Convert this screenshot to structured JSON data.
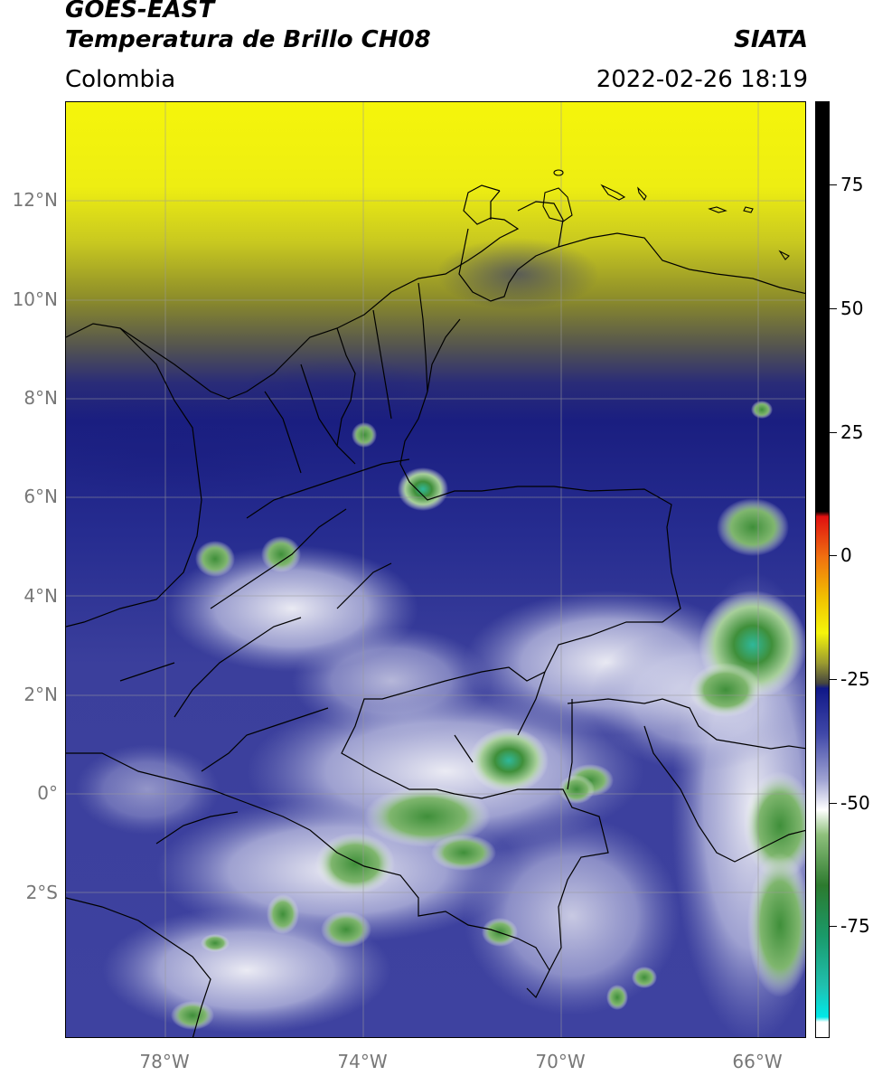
{
  "header": {
    "satellite": "GOES-EAST",
    "product": "Temperatura de Brillo CH08",
    "region": "Colombia",
    "agency": "SIATA",
    "timestamp": "2022-02-26 18:19"
  },
  "map": {
    "lat_ticks": [
      "12°N",
      "10°N",
      "8°N",
      "6°N",
      "4°N",
      "2°N",
      "0°",
      "2°S"
    ],
    "lon_ticks": [
      "78°W",
      "74°W",
      "70°W",
      "66°W"
    ],
    "colors": {
      "warm_yellow": "#f5f50a",
      "olive": "#8c8c2a",
      "gray": "#55554f",
      "navy": "#1a1e80",
      "blue": "#3b3f9c",
      "lavender": "#8a8ec6",
      "white": "#f4f4f8",
      "light_green": "#a7cf9a",
      "green": "#3f8f3a",
      "teal": "#2fb89a",
      "border": "#000000"
    }
  },
  "colorbar": {
    "labels": [
      "75",
      "50",
      "25",
      "0",
      "-25",
      "-50",
      "-75"
    ],
    "range": [
      -95,
      90
    ],
    "stops": [
      {
        "value": 90,
        "color": "#000000"
      },
      {
        "value": 9,
        "color": "#000000"
      },
      {
        "value": 8,
        "color": "#e01010"
      },
      {
        "value": 0,
        "color": "#f07010"
      },
      {
        "value": -8,
        "color": "#f0c000"
      },
      {
        "value": -15,
        "color": "#f5f50a"
      },
      {
        "value": -21,
        "color": "#9a9a30"
      },
      {
        "value": -25,
        "color": "#45453f"
      },
      {
        "value": -26,
        "color": "#101888"
      },
      {
        "value": -35,
        "color": "#4048a8"
      },
      {
        "value": -44,
        "color": "#9ea2d2"
      },
      {
        "value": -50,
        "color": "#ffffff"
      },
      {
        "value": -55,
        "color": "#8ec07c"
      },
      {
        "value": -65,
        "color": "#2c7a2e"
      },
      {
        "value": -75,
        "color": "#1a9a6a"
      },
      {
        "value": -85,
        "color": "#20c0b0"
      },
      {
        "value": -91,
        "color": "#00e8e8"
      },
      {
        "value": -92,
        "color": "#ffffff"
      },
      {
        "value": -95,
        "color": "#ffffff"
      }
    ]
  }
}
